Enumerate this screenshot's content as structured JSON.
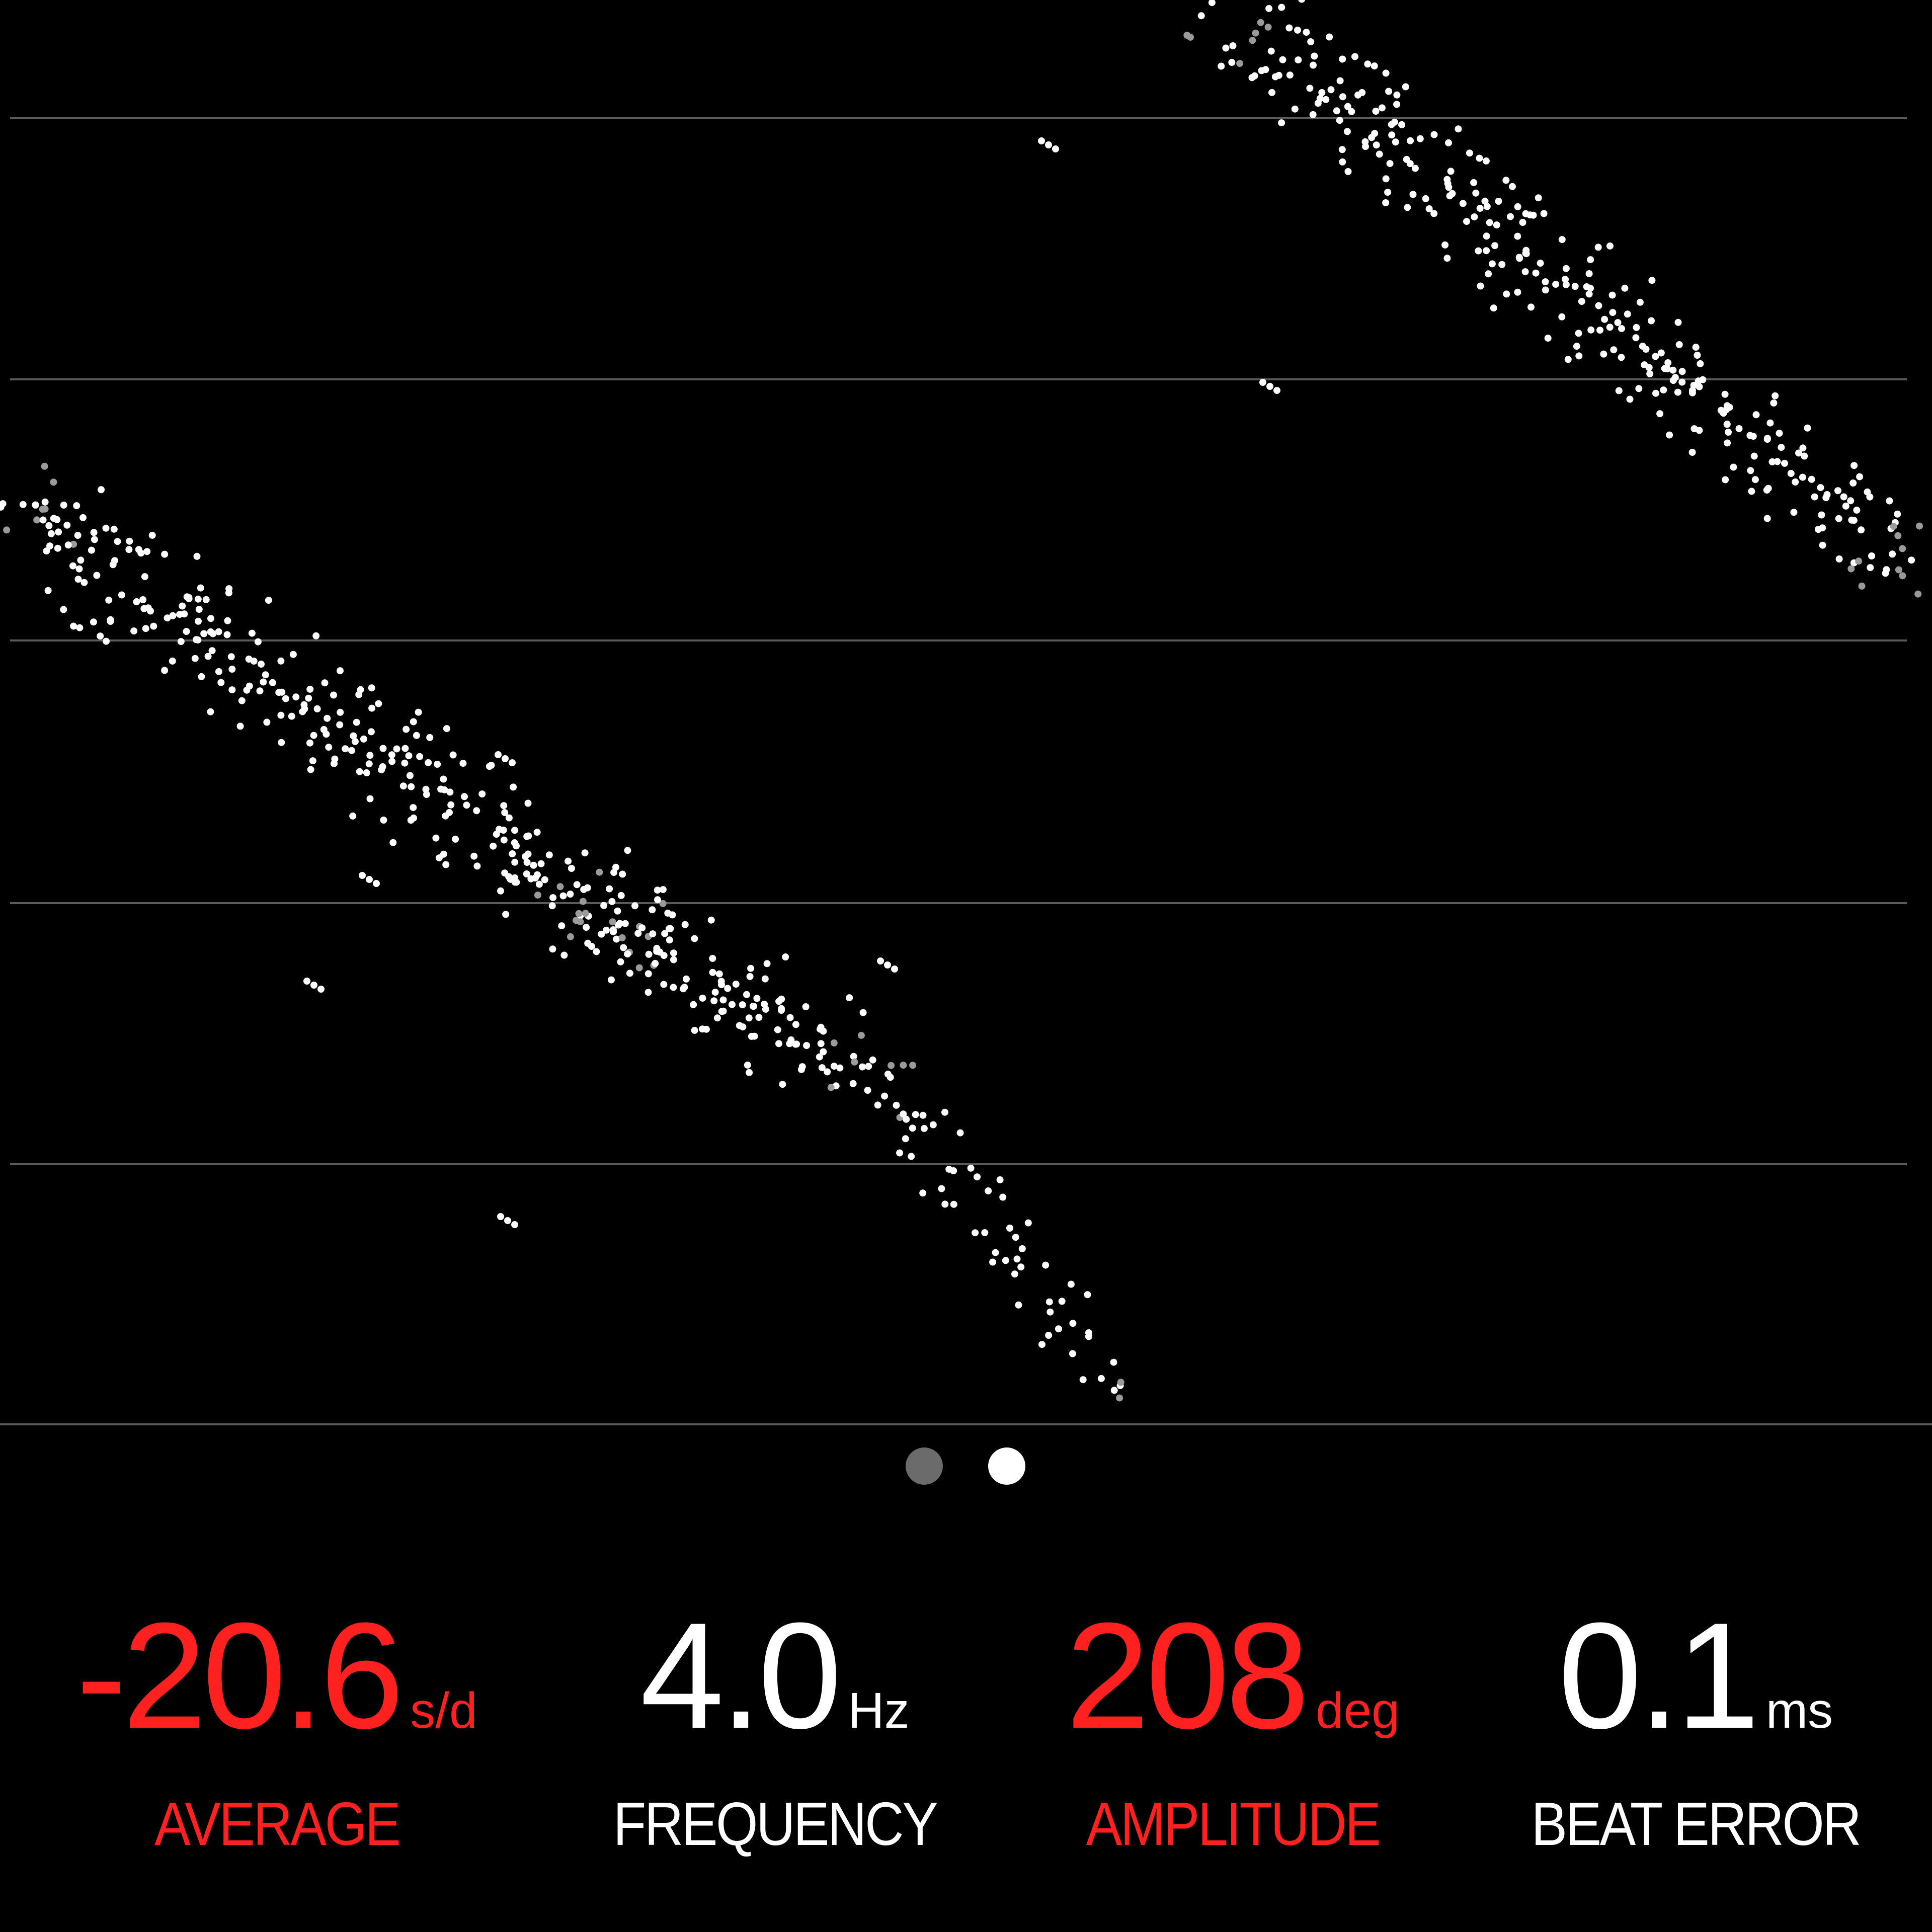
{
  "colors": {
    "background": "#000000",
    "red": "#ff2020",
    "white": "#ffffff",
    "grid": "#5a5a5a",
    "pager_inactive": "#6b6b6b",
    "pager_active": "#ffffff"
  },
  "pager": {
    "pages": 2,
    "active": 2
  },
  "stats": [
    {
      "value": "-20.6",
      "unit": "s/d",
      "label": "AVERAGE",
      "color": "#ff2020"
    },
    {
      "value": "4.0",
      "unit": "Hz",
      "label": "FREQUENCY",
      "color": "#ffffff"
    },
    {
      "value": "208",
      "unit": "deg",
      "label": "AMPLITUDE",
      "color": "#ff2020"
    },
    {
      "value": "0.1",
      "unit": "ms",
      "label": "BEAT ERROR",
      "color": "#ffffff"
    }
  ]
}
